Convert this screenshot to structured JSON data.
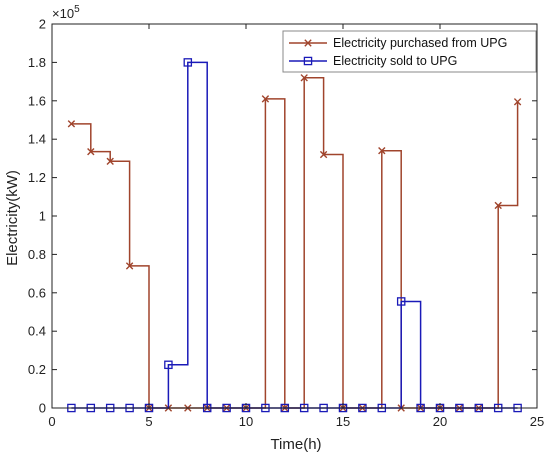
{
  "chart_data": {
    "type": "line",
    "step": "post",
    "xlabel": "Time(h)",
    "ylabel": "Electricity(kW)",
    "y_exponent_label": "×10",
    "y_exponent_power": "5",
    "xlim": [
      0,
      25
    ],
    "ylim": [
      0,
      200000
    ],
    "xticks": [
      0,
      5,
      10,
      15,
      20,
      25
    ],
    "yticks": [
      0,
      20000,
      40000,
      60000,
      80000,
      100000,
      120000,
      140000,
      160000,
      180000,
      200000
    ],
    "xtick_labels": [
      "0",
      "5",
      "10",
      "15",
      "20",
      "25"
    ],
    "ytick_labels": [
      "0",
      "0.2",
      "0.4",
      "0.6",
      "0.8",
      "1",
      "1.2",
      "1.4",
      "1.6",
      "1.8",
      "2"
    ],
    "grid": false,
    "legend_position": "top-right",
    "x": [
      1,
      2,
      3,
      4,
      5,
      6,
      7,
      8,
      9,
      10,
      11,
      12,
      13,
      14,
      15,
      16,
      17,
      18,
      19,
      20,
      21,
      22,
      23,
      24
    ],
    "series": [
      {
        "name": "Electricity purchased from UPG",
        "color": "#a0442c",
        "marker": "x",
        "values": [
          148000,
          133500,
          128500,
          74000,
          0,
          0,
          0,
          0,
          0,
          0,
          161000,
          0,
          172000,
          132000,
          0,
          0,
          134000,
          0,
          0,
          0,
          0,
          0,
          105500,
          159500
        ]
      },
      {
        "name": "Electricity sold to UPG",
        "color": "#1a1ab8",
        "marker": "square",
        "values": [
          0,
          0,
          0,
          0,
          0,
          22500,
          180000,
          0,
          0,
          0,
          0,
          0,
          0,
          0,
          0,
          0,
          0,
          55500,
          0,
          0,
          0,
          0,
          0,
          0
        ]
      }
    ]
  }
}
